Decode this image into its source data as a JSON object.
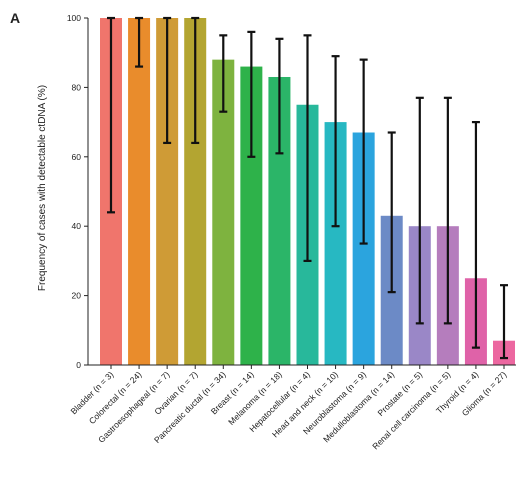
{
  "panel_label": "A",
  "chart_data": {
    "type": "bar",
    "title": "",
    "xlabel": "",
    "ylabel": "Frequency of cases with detectable ctDNA (%)",
    "ylim": [
      0,
      100
    ],
    "yticks": [
      0,
      20,
      40,
      60,
      80,
      100
    ],
    "grid": false,
    "error_bars": true,
    "categories": [
      "Bladder (n = 3)",
      "Colorectal (n = 24)",
      "Gastroesophageal (n = 7)",
      "Ovarian (n = 7)",
      "Pancreatic ductal (n = 34)",
      "Breast (n = 14)",
      "Melanoma (n = 18)",
      "Hepatocellular (n = 4)",
      "Head and neck (n = 10)",
      "Neuroblastoma (n = 9)",
      "Medulloblastoma (n = 14)",
      "Prostate (n = 5)",
      "Renal cell carcinoma (n = 5)",
      "Thyroid (n = 4)",
      "Glioma (n = 27)"
    ],
    "values": [
      100,
      100,
      100,
      100,
      88,
      86,
      83,
      75,
      70,
      67,
      43,
      40,
      40,
      25,
      7
    ],
    "error_low": [
      44,
      86,
      64,
      64,
      73,
      60,
      61,
      30,
      40,
      35,
      21,
      12,
      12,
      5,
      2
    ],
    "error_high": [
      100,
      100,
      100,
      100,
      95,
      96,
      94,
      95,
      89,
      88,
      67,
      77,
      77,
      70,
      23
    ],
    "colors": [
      "#f0756c",
      "#e98c2c",
      "#cf9b36",
      "#b3a531",
      "#7eb33f",
      "#2eb24a",
      "#2bb568",
      "#28b89b",
      "#27b8c2",
      "#2ba4de",
      "#6c8ac6",
      "#9a87c7",
      "#b57dbd",
      "#df62a8",
      "#ec67a0"
    ]
  }
}
